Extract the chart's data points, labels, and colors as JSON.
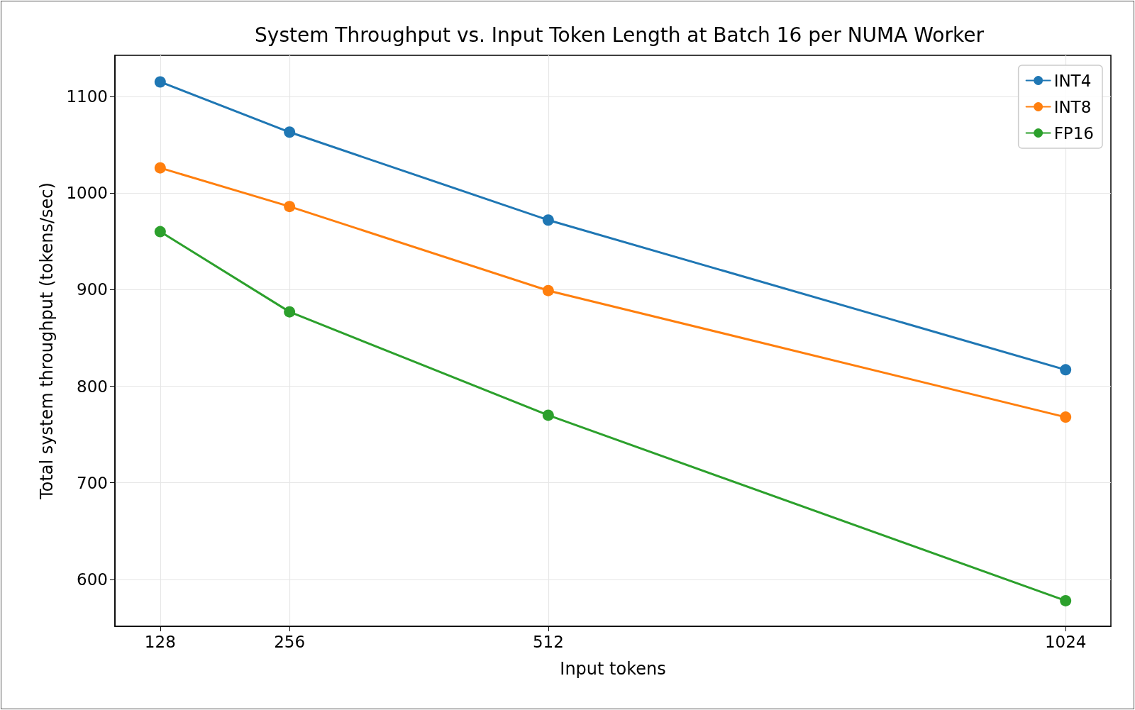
{
  "chart_data": {
    "type": "line",
    "title": "System Throughput vs. Input Token Length at Batch 16 per NUMA Worker",
    "xlabel": "Input tokens",
    "ylabel": "Total system throughput (tokens/sec)",
    "x": [
      128,
      256,
      512,
      1024
    ],
    "series": [
      {
        "name": "INT4",
        "color": "#1f77b4",
        "values": [
          1115,
          1063,
          972,
          817
        ]
      },
      {
        "name": "INT8",
        "color": "#ff7f0e",
        "values": [
          1026,
          986,
          899,
          768
        ]
      },
      {
        "name": "FP16",
        "color": "#2ca02c",
        "values": [
          960,
          877,
          770,
          578
        ]
      }
    ],
    "xlim": [
      83.2,
      1068.8
    ],
    "xticks": [
      128,
      256,
      512,
      1024
    ],
    "ylim": [
      551.5,
      1142.5
    ],
    "yticks": [
      600,
      700,
      800,
      900,
      1000,
      1100
    ],
    "grid": true,
    "legend": "top right",
    "marker": "circle",
    "line_style": "solid"
  }
}
